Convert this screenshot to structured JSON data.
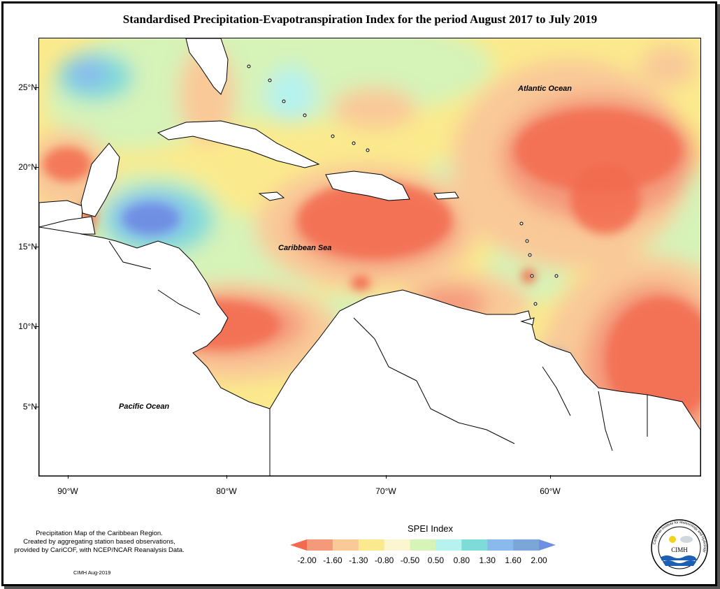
{
  "title": "Standardised Precipitation-Evapotranspiration Index for the period August 2017 to July 2019",
  "map": {
    "labels": {
      "atlantic": "Atlantic Ocean",
      "caribbean": "Caribbean Sea",
      "pacific": "Pacific Ocean"
    },
    "lat_ticks": [
      "25°N",
      "20°N",
      "15°N",
      "10°N",
      "5°N"
    ],
    "lon_ticks": [
      "90°W",
      "80°W",
      "70°W",
      "60°W"
    ]
  },
  "notes": {
    "line1": "Precipitation Map of the Caribbean Region.",
    "line2": "Created by aggregating station based observations,",
    "line3": "provided by CariCOF, with NCEP/NCAR Reanalysis Data.",
    "credit": "CIMH Aug-2019"
  },
  "legend": {
    "title": "SPEI Index",
    "labels": [
      "-2.00",
      "-1.60",
      "-1.30",
      "-0.80",
      "-0.50",
      "0.50",
      "0.80",
      "1.30",
      "1.60",
      "2.00"
    ],
    "colors": [
      "#f26b4f",
      "#f49a7b",
      "#f9c998",
      "#fbea8d",
      "#fbf6cf",
      "#d6f3b8",
      "#b6f2ee",
      "#7fdbd8",
      "#8ab9ee",
      "#7aa6d8",
      "#6f8fe3"
    ]
  },
  "logo": {
    "name": "CIMH",
    "ring_text": "Caribbean Institute for Meteorology and Hydrology"
  }
}
